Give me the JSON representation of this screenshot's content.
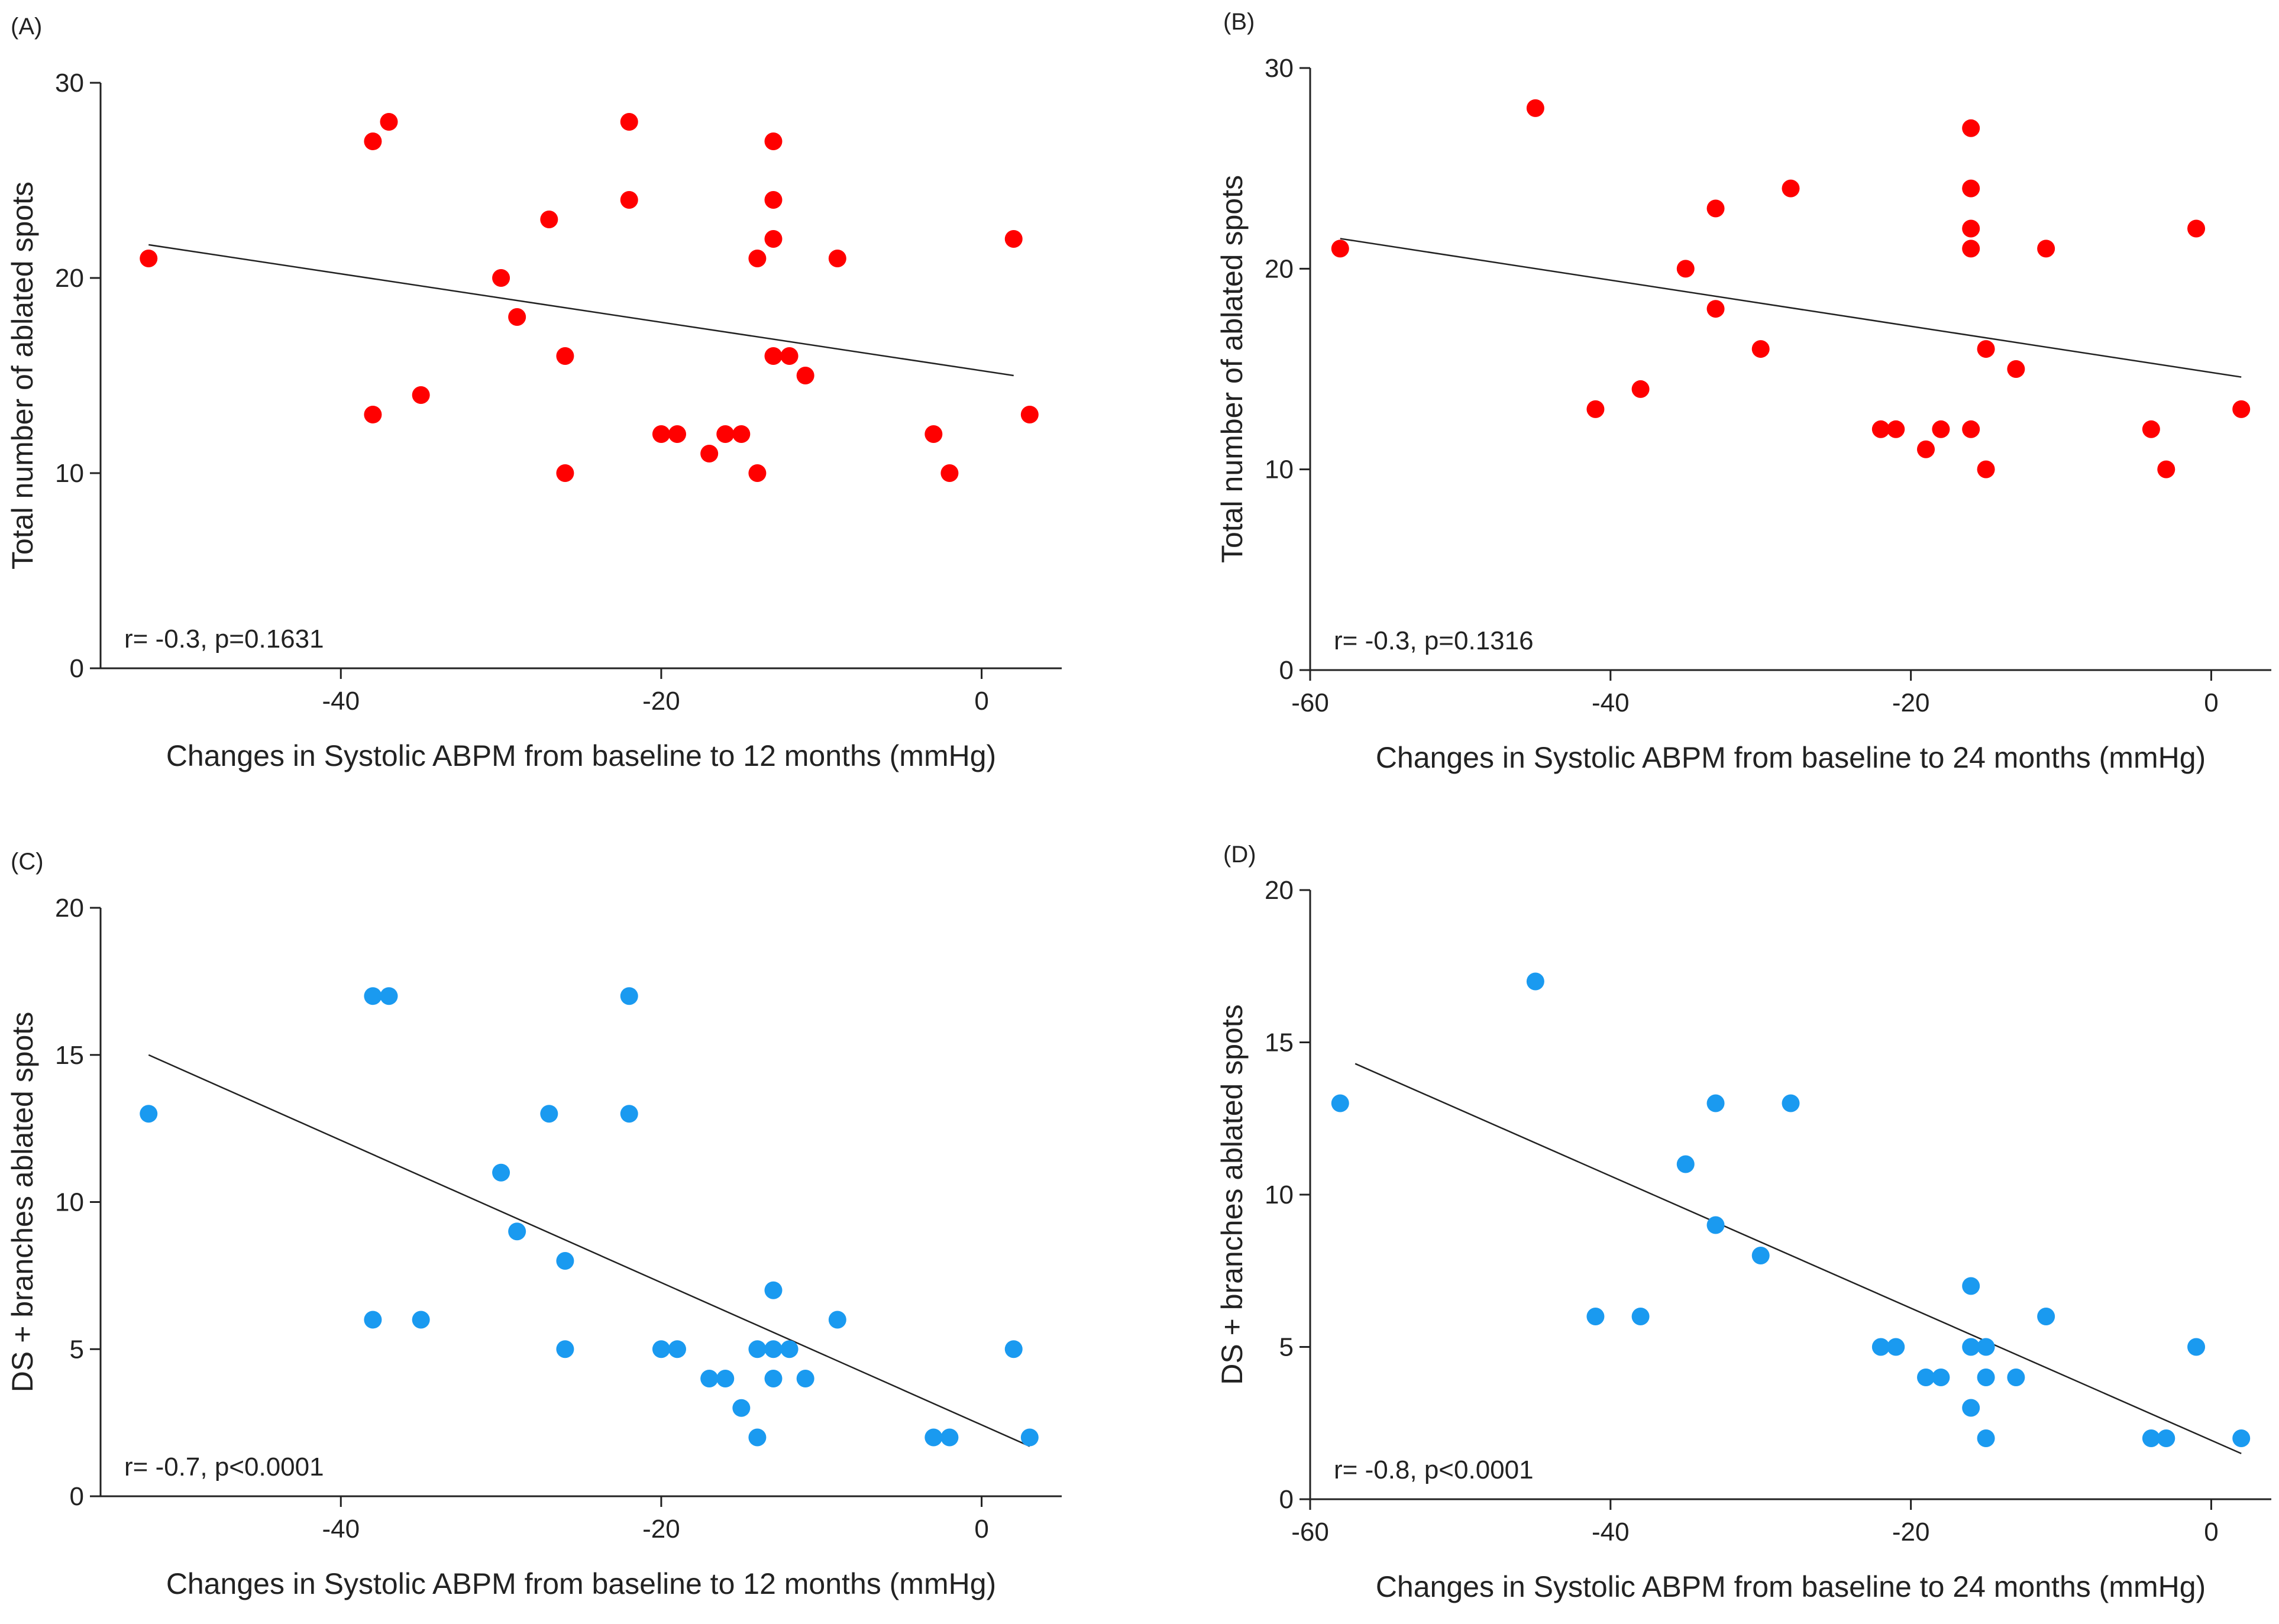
{
  "colors": {
    "red_points": "#ff0000",
    "blue_points": "#1a9af0",
    "axis": "#222222",
    "fit_line": "#222222"
  },
  "chart_data": [
    {
      "id": "A",
      "panel_label": "(A)",
      "type": "scatter",
      "title": "",
      "xlabel": "Changes in Systolic ABPM from baseline to 12 months (mmHg)",
      "ylabel": "Total number of ablated spots",
      "xlim": [
        -55,
        5
      ],
      "ylim": [
        0,
        30
      ],
      "xticks": [
        -40,
        -20,
        0
      ],
      "xtick_labels": [
        "-40",
        "-20",
        "0"
      ],
      "yticks": [
        0,
        10,
        20,
        30
      ],
      "ytick_labels": [
        "0",
        "10",
        "20",
        "30"
      ],
      "color": "#ff0000",
      "grid": false,
      "stat_text": "r= -0.3, p=0.1631",
      "fit_line": {
        "x": [
          -52,
          2
        ],
        "y": [
          21.7,
          15.0
        ]
      },
      "points": [
        [
          -52,
          21
        ],
        [
          -38,
          27
        ],
        [
          -37,
          28
        ],
        [
          -38,
          13
        ],
        [
          -35,
          14
        ],
        [
          -30,
          20
        ],
        [
          -29,
          18
        ],
        [
          -27,
          23
        ],
        [
          -26,
          16
        ],
        [
          -26,
          10
        ],
        [
          -22,
          28
        ],
        [
          -22,
          24
        ],
        [
          -20,
          12
        ],
        [
          -19,
          12
        ],
        [
          -17,
          11
        ],
        [
          -16,
          12
        ],
        [
          -15,
          12
        ],
        [
          -14,
          21
        ],
        [
          -14,
          10
        ],
        [
          -13,
          27
        ],
        [
          -13,
          24
        ],
        [
          -13,
          22
        ],
        [
          -13,
          16
        ],
        [
          -12,
          16
        ],
        [
          -11,
          15
        ],
        [
          -9,
          21
        ],
        [
          -3,
          12
        ],
        [
          -2,
          10
        ],
        [
          2,
          22
        ],
        [
          3,
          13
        ]
      ]
    },
    {
      "id": "B",
      "panel_label": "(B)",
      "type": "scatter",
      "title": "",
      "xlabel": "Changes in Systolic ABPM from baseline to 24 months (mmHg)",
      "ylabel": "Total number of ablated spots",
      "xlim": [
        -60,
        4
      ],
      "ylim": [
        0,
        30
      ],
      "xticks": [
        -60,
        -40,
        -20,
        0
      ],
      "xtick_labels": [
        "-60",
        "-40",
        "-20",
        "0"
      ],
      "yticks": [
        0,
        10,
        20,
        30
      ],
      "ytick_labels": [
        "0",
        "10",
        "20",
        "30"
      ],
      "color": "#ff0000",
      "grid": false,
      "stat_text": "r= -0.3, p=0.1316",
      "fit_line": {
        "x": [
          -58,
          2
        ],
        "y": [
          21.5,
          14.6
        ]
      },
      "points": [
        [
          -58,
          21
        ],
        [
          -45,
          28
        ],
        [
          -41,
          13
        ],
        [
          -38,
          14
        ],
        [
          -35,
          20
        ],
        [
          -33,
          23
        ],
        [
          -33,
          18
        ],
        [
          -30,
          16
        ],
        [
          -28,
          24
        ],
        [
          -22,
          12
        ],
        [
          -21,
          12
        ],
        [
          -19,
          11
        ],
        [
          -18,
          12
        ],
        [
          -16,
          27
        ],
        [
          -16,
          24
        ],
        [
          -16,
          22
        ],
        [
          -16,
          21
        ],
        [
          -16,
          12
        ],
        [
          -15,
          16
        ],
        [
          -15,
          10
        ],
        [
          -13,
          15
        ],
        [
          -11,
          21
        ],
        [
          -4,
          12
        ],
        [
          -3,
          10
        ],
        [
          -1,
          22
        ],
        [
          2,
          13
        ]
      ]
    },
    {
      "id": "C",
      "panel_label": "(C)",
      "type": "scatter",
      "title": "",
      "xlabel": "Changes in Systolic ABPM from baseline to 12 months (mmHg)",
      "ylabel": "DS + branches ablated spots",
      "xlim": [
        -55,
        5
      ],
      "ylim": [
        0,
        20
      ],
      "xticks": [
        -40,
        -20,
        0
      ],
      "xtick_labels": [
        "-40",
        "-20",
        "0"
      ],
      "yticks": [
        0,
        5,
        10,
        15,
        20
      ],
      "ytick_labels": [
        "0",
        "5",
        "10",
        "15",
        "20"
      ],
      "color": "#1a9af0",
      "grid": false,
      "stat_text": "r= -0.7, p<0.0001",
      "fit_line": {
        "x": [
          -52,
          3
        ],
        "y": [
          15.0,
          1.7
        ]
      },
      "points": [
        [
          -52,
          13
        ],
        [
          -38,
          17
        ],
        [
          -37,
          17
        ],
        [
          -38,
          6
        ],
        [
          -35,
          6
        ],
        [
          -30,
          11
        ],
        [
          -29,
          9
        ],
        [
          -27,
          13
        ],
        [
          -26,
          8
        ],
        [
          -26,
          5
        ],
        [
          -22,
          17
        ],
        [
          -22,
          13
        ],
        [
          -20,
          5
        ],
        [
          -19,
          5
        ],
        [
          -17,
          4
        ],
        [
          -16,
          4
        ],
        [
          -15,
          3
        ],
        [
          -14,
          5
        ],
        [
          -14,
          2
        ],
        [
          -13,
          7
        ],
        [
          -13,
          5
        ],
        [
          -13,
          4
        ],
        [
          -12,
          5
        ],
        [
          -11,
          4
        ],
        [
          -9,
          6
        ],
        [
          -3,
          2
        ],
        [
          -2,
          2
        ],
        [
          2,
          5
        ],
        [
          3,
          2
        ]
      ]
    },
    {
      "id": "D",
      "panel_label": "(D)",
      "type": "scatter",
      "title": "",
      "xlabel": "Changes in Systolic ABPM from baseline to 24 months (mmHg)",
      "ylabel": "DS + branches ablated spots",
      "xlim": [
        -60,
        4
      ],
      "ylim": [
        0,
        20
      ],
      "xticks": [
        -60,
        -40,
        -20,
        0
      ],
      "xtick_labels": [
        "-60",
        "-40",
        "-20",
        "0"
      ],
      "yticks": [
        0,
        5,
        10,
        15,
        20
      ],
      "ytick_labels": [
        "0",
        "5",
        "10",
        "15",
        "20"
      ],
      "color": "#1a9af0",
      "grid": false,
      "stat_text": "r= -0.8, p<0.0001",
      "fit_line": {
        "x": [
          -57,
          2
        ],
        "y": [
          14.3,
          1.5
        ]
      },
      "points": [
        [
          -58,
          13
        ],
        [
          -45,
          17
        ],
        [
          -41,
          6
        ],
        [
          -38,
          6
        ],
        [
          -35,
          11
        ],
        [
          -33,
          13
        ],
        [
          -33,
          9
        ],
        [
          -30,
          8
        ],
        [
          -28,
          13
        ],
        [
          -22,
          5
        ],
        [
          -21,
          5
        ],
        [
          -19,
          4
        ],
        [
          -18,
          4
        ],
        [
          -16,
          7
        ],
        [
          -16,
          5
        ],
        [
          -16,
          3
        ],
        [
          -15,
          5
        ],
        [
          -15,
          4
        ],
        [
          -15,
          2
        ],
        [
          -13,
          4
        ],
        [
          -11,
          6
        ],
        [
          -4,
          2
        ],
        [
          -3,
          2
        ],
        [
          -1,
          5
        ],
        [
          2,
          2
        ]
      ]
    }
  ]
}
